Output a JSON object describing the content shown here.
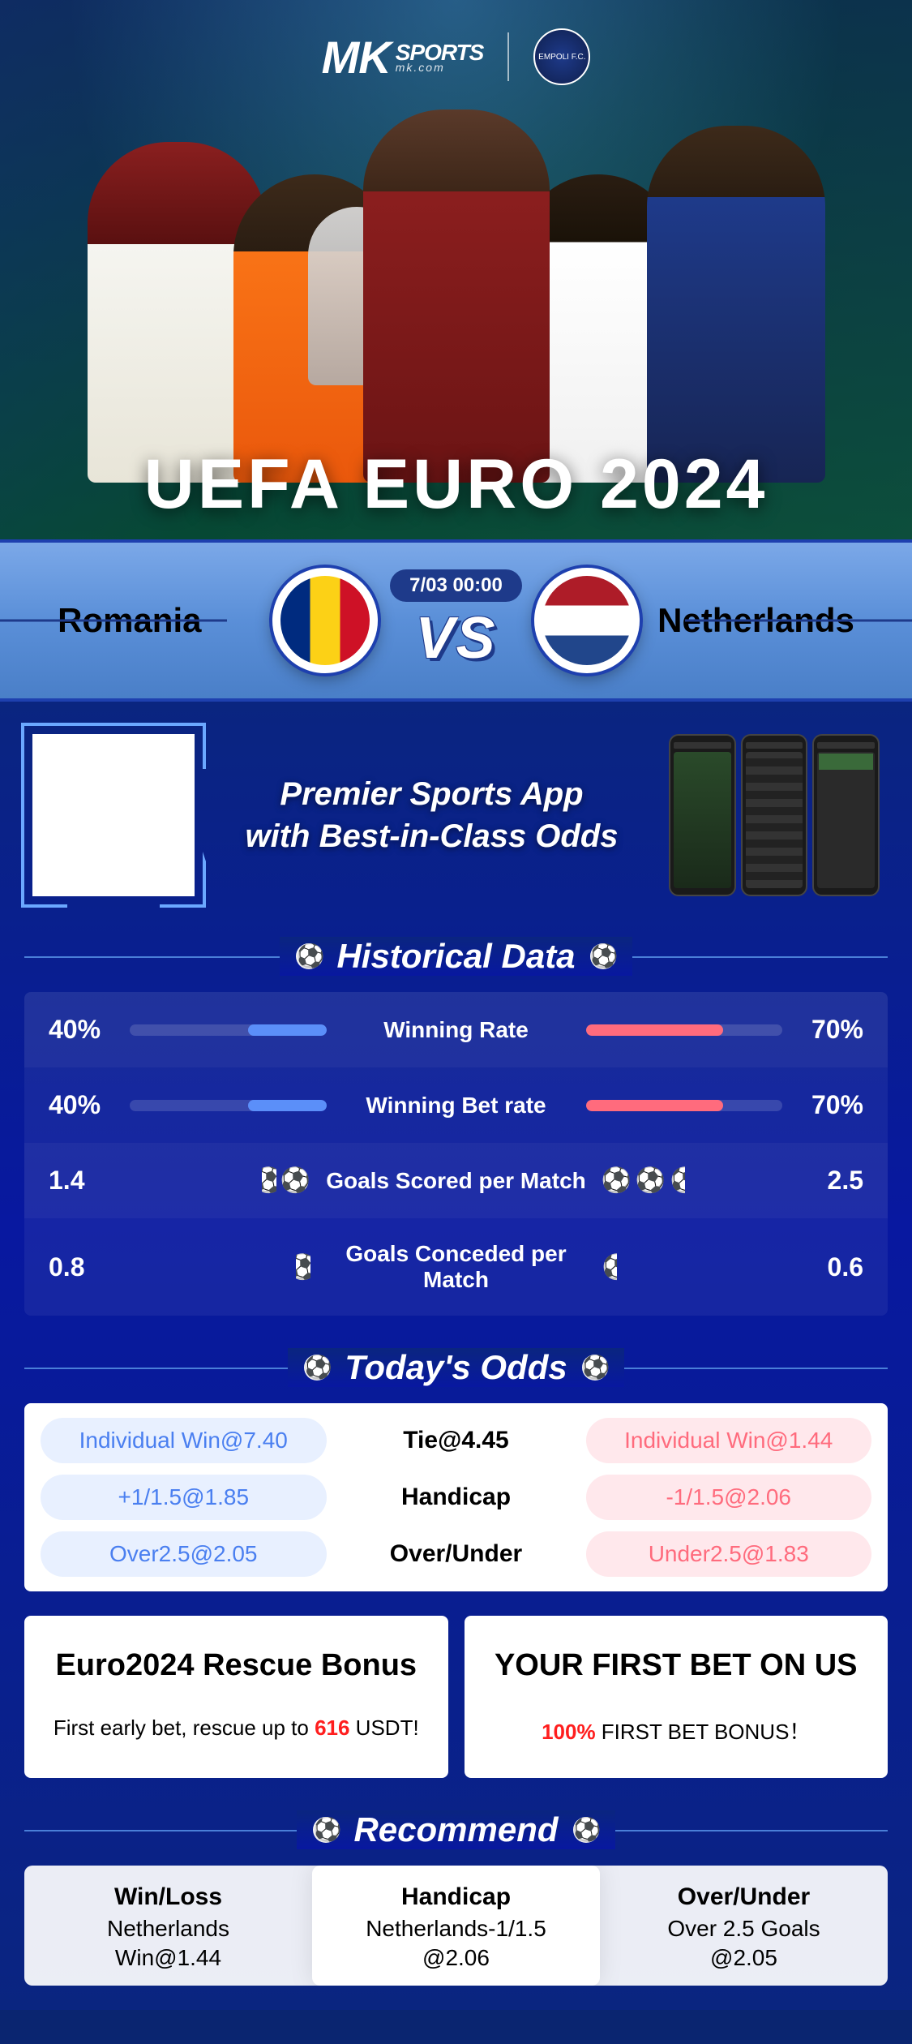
{
  "brand": {
    "logo_main": "MK",
    "logo_text": "SPORTS",
    "logo_sub": "mk.com",
    "club_badge": "EMPOLI F.C."
  },
  "hero": {
    "title": "UEFA EURO 2024"
  },
  "match": {
    "team_left": "Romania",
    "team_right": "Netherlands",
    "date_time": "7/03 00:00",
    "vs": "VS",
    "flag_left_colors": [
      "#002b7f",
      "#fcd116",
      "#ce1126"
    ],
    "flag_right_colors": [
      "#ae1c28",
      "#ffffff",
      "#21468b"
    ]
  },
  "promo": {
    "headline_line1": "Premier Sports App",
    "headline_line2": "with Best-in-Class Odds"
  },
  "sections": {
    "historical": "Historical Data",
    "odds": "Today's Odds",
    "recommend": "Recommend"
  },
  "historical": {
    "color_left": "#5b8ff9",
    "color_right": "#ff6b7d",
    "rows": [
      {
        "type": "bar",
        "label": "Winning Rate",
        "left_val": "40%",
        "left_pct": 40,
        "right_val": "70%",
        "right_pct": 70
      },
      {
        "type": "bar",
        "label": "Winning Bet rate",
        "left_val": "40%",
        "left_pct": 40,
        "right_val": "70%",
        "right_pct": 70
      },
      {
        "type": "goals",
        "label": "Goals Scored per Match",
        "left_val": "1.4",
        "left_goals": 1.4,
        "right_val": "2.5",
        "right_goals": 2.5
      },
      {
        "type": "goals",
        "label": "Goals Conceded per Match",
        "left_val": "0.8",
        "left_goals": 0.8,
        "right_val": "0.6",
        "right_goals": 0.6
      }
    ]
  },
  "odds": {
    "rows": [
      {
        "left": "Individual Win@7.40",
        "center": "Tie@4.45",
        "right": "Individual Win@1.44"
      },
      {
        "left": "+1/1.5@1.85",
        "center": "Handicap",
        "right": "-1/1.5@2.06"
      },
      {
        "left": "Over2.5@2.05",
        "center": "Over/Under",
        "right": "Under2.5@1.83"
      }
    ],
    "color_left_bg": "#e8f0ff",
    "color_left_text": "#4a7ff0",
    "color_right_bg": "#ffe8ec",
    "color_right_text": "#ff6b7d"
  },
  "bonuses": [
    {
      "title": "Euro2024 Rescue Bonus",
      "subtitle_pre": "First early bet, rescue up to ",
      "subtitle_hl": "616",
      "subtitle_post": " USDT!"
    },
    {
      "title": "YOUR FIRST BET ON US",
      "subtitle_pre": "",
      "subtitle_hl": "100%",
      "subtitle_post": " FIRST BET BONUS！"
    }
  ],
  "recommend": [
    {
      "title": "Win/Loss",
      "pick": "Netherlands",
      "odds": "Win@1.44",
      "active": false
    },
    {
      "title": "Handicap",
      "pick": "Netherlands-1/1.5",
      "odds": "@2.06",
      "active": true
    },
    {
      "title": "Over/Under",
      "pick": "Over 2.5 Goals",
      "odds": "@2.05",
      "active": false
    }
  ],
  "colors": {
    "primary_blue": "#1e3a8a",
    "bg_deep": "#0a2580",
    "accent_highlight": "#ff1e1e"
  }
}
